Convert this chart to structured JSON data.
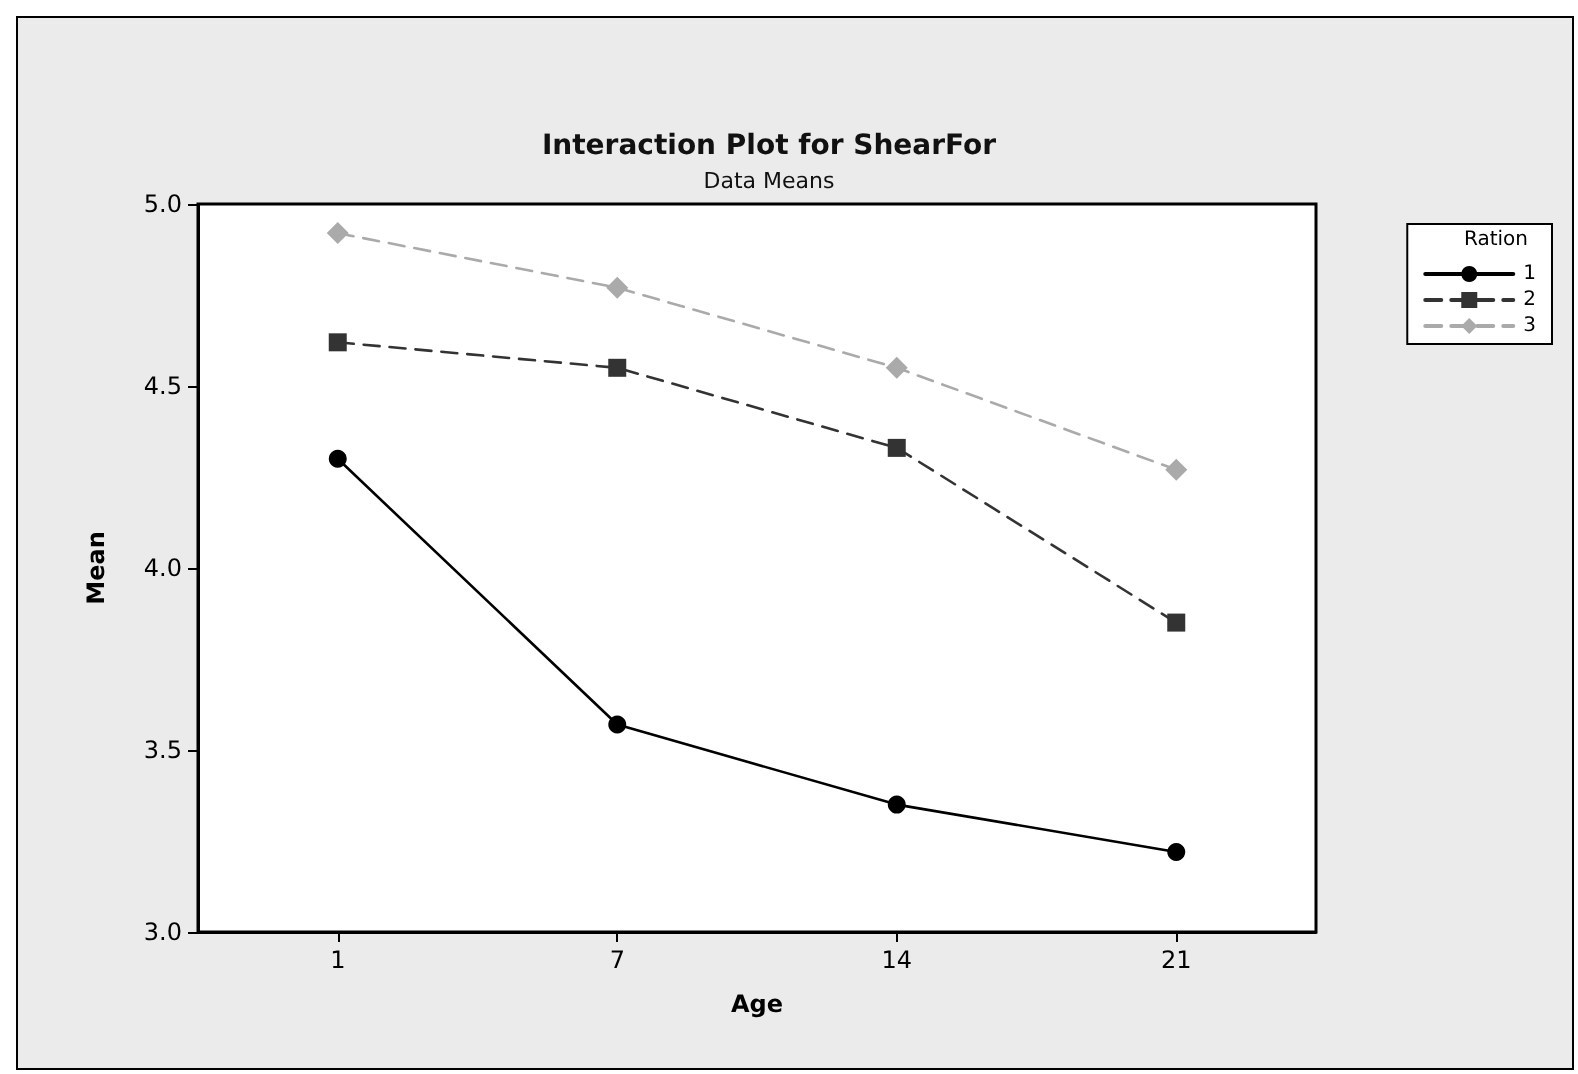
{
  "chart_data": {
    "type": "line",
    "title": "Interaction Plot for ShearFor",
    "subtitle": "Data Means",
    "xlabel": "Age",
    "ylabel": "Mean",
    "legend_title": "Ration",
    "categories": [
      "1",
      "7",
      "14",
      "21"
    ],
    "series": [
      {
        "name": "1",
        "color": "#000000",
        "marker": "circle",
        "line_style": "solid",
        "values": [
          4.3,
          3.57,
          3.35,
          3.22
        ]
      },
      {
        "name": "2",
        "color": "#333333",
        "marker": "square",
        "line_style": "dashed",
        "values": [
          4.62,
          4.55,
          4.33,
          3.85
        ]
      },
      {
        "name": "3",
        "color": "#aaaaaa",
        "marker": "diamond",
        "line_style": "dashed",
        "values": [
          4.92,
          4.77,
          4.55,
          4.27
        ]
      }
    ],
    "ylim": [
      3.0,
      5.0
    ],
    "yticks": [
      {
        "value": 3.0,
        "label": "3.0"
      },
      {
        "value": 3.5,
        "label": "3.5"
      },
      {
        "value": 4.0,
        "label": "4.0"
      },
      {
        "value": 4.5,
        "label": "4.5"
      },
      {
        "value": 5.0,
        "label": "5.0"
      }
    ],
    "grid": false,
    "legend": "top right"
  }
}
